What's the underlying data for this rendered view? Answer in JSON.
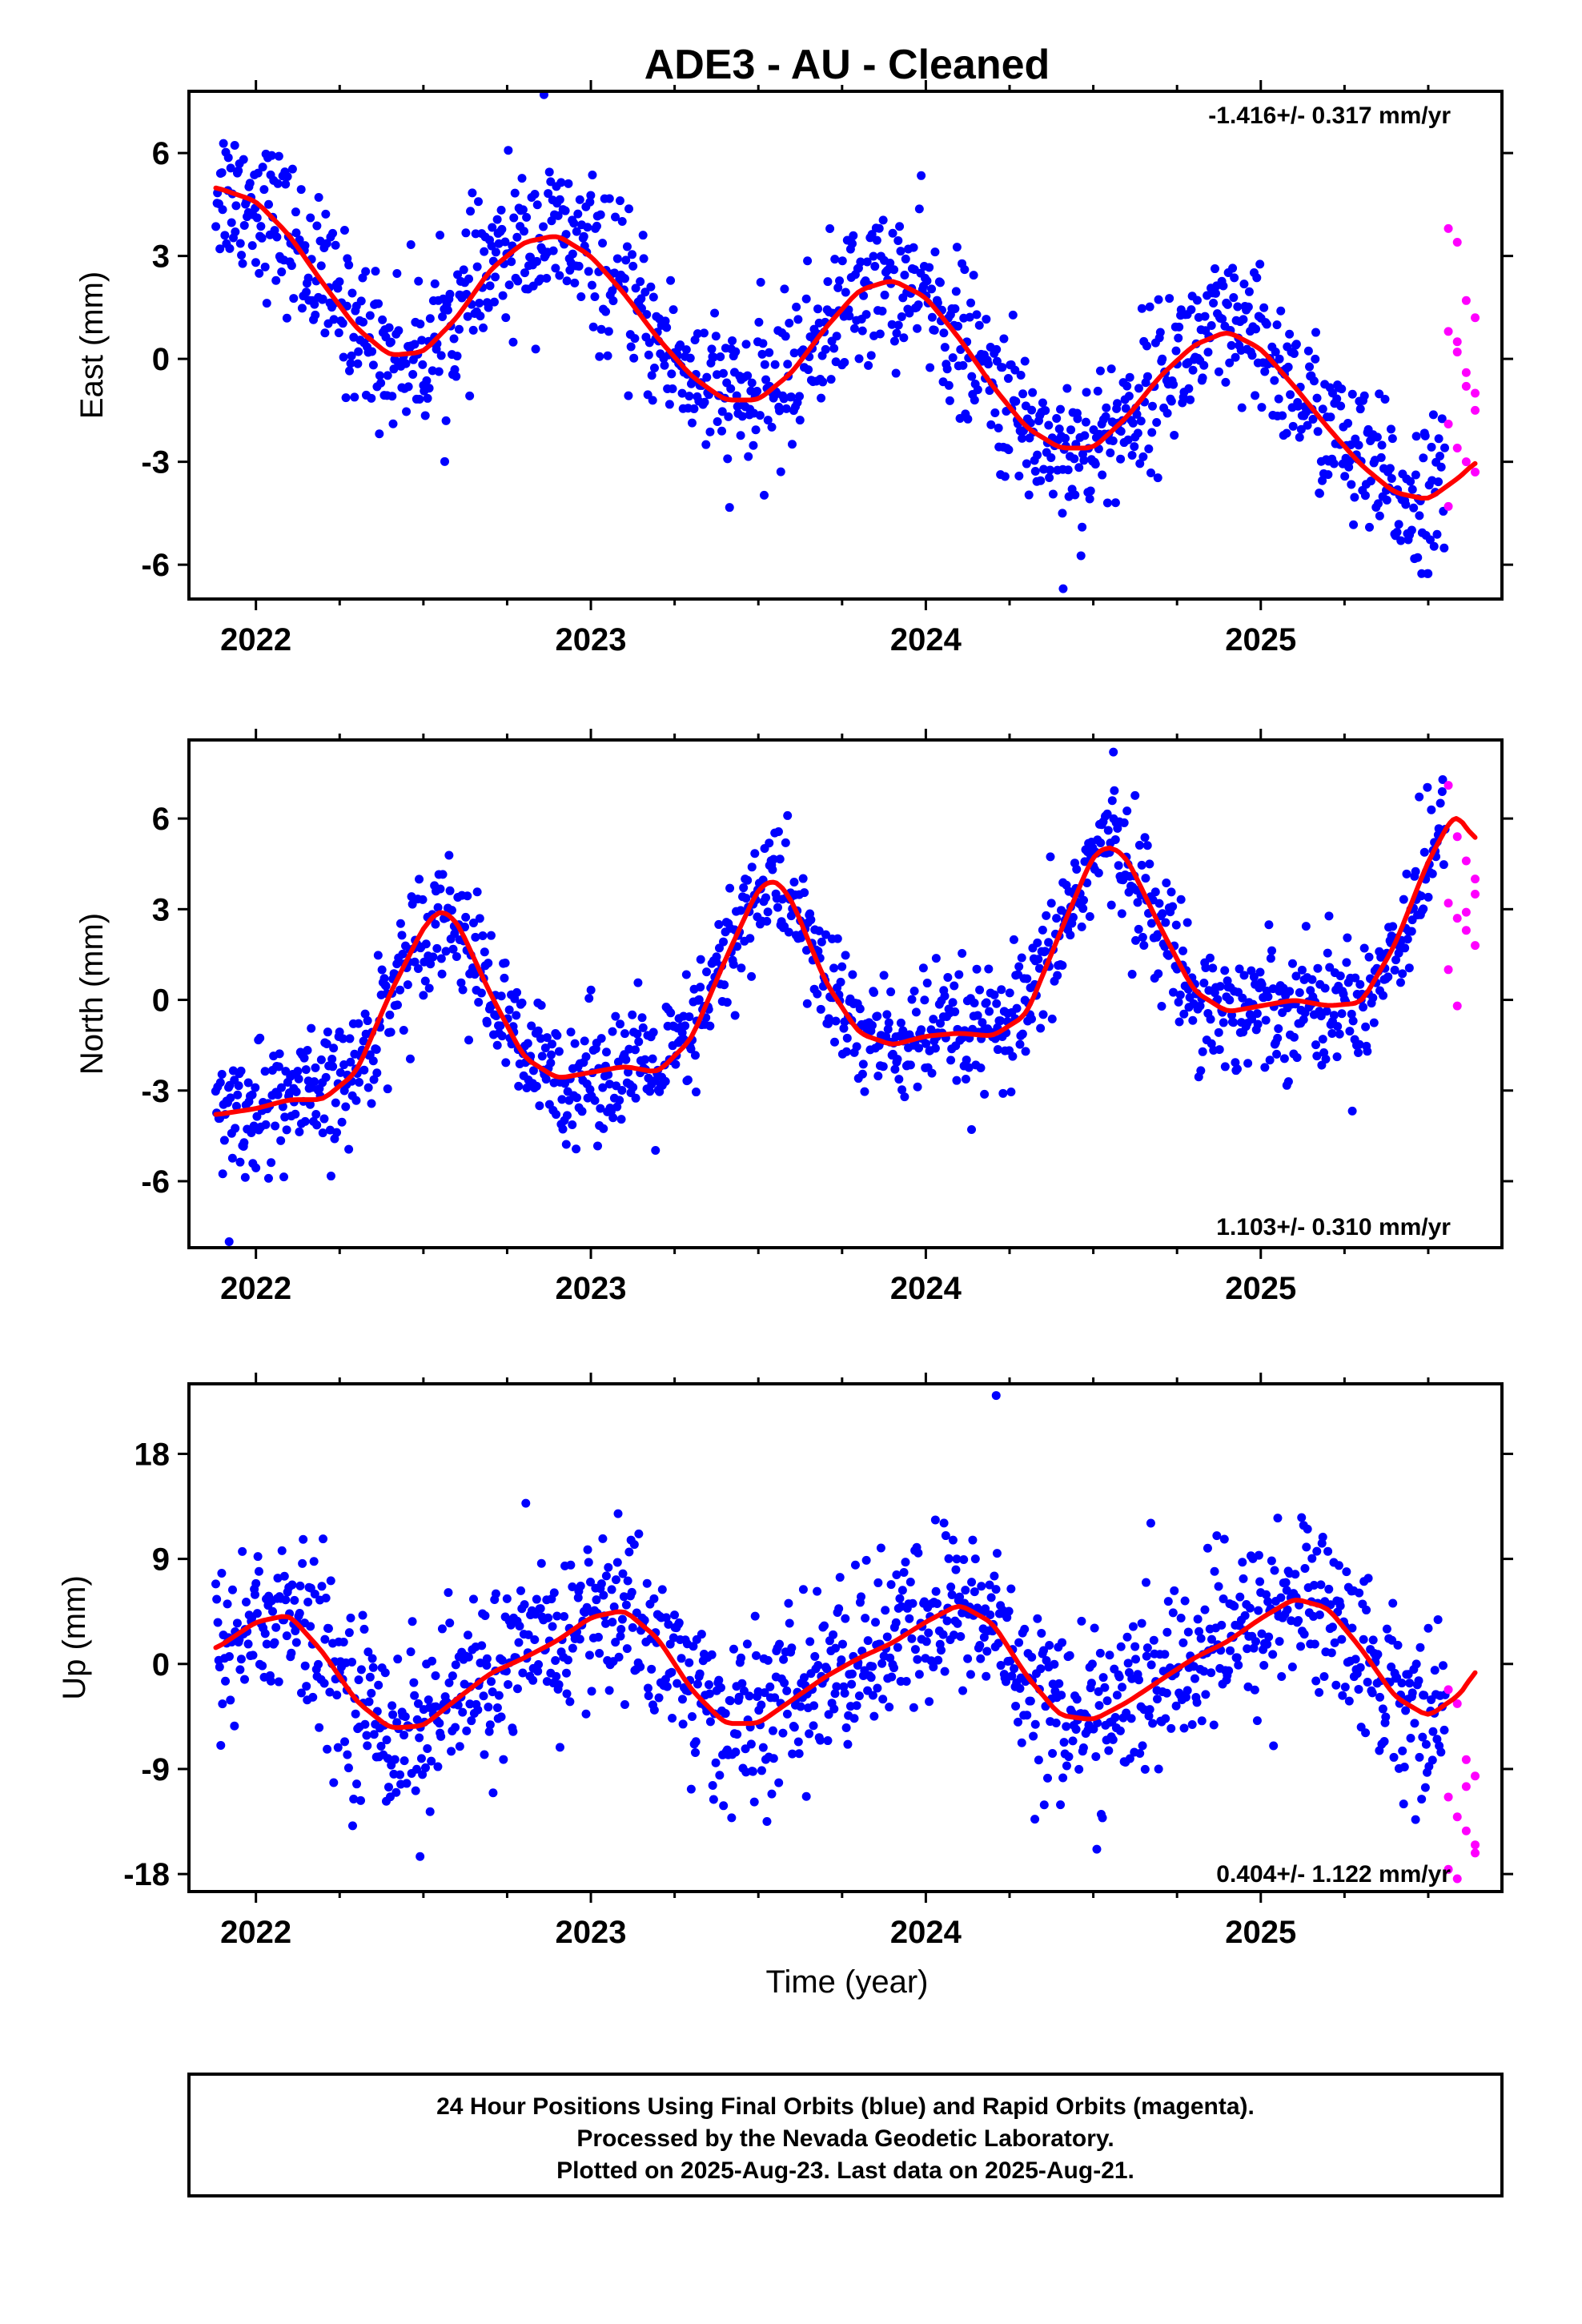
{
  "figure": {
    "title": "ADE3  - AU - Cleaned",
    "xlabel": "Time (year)",
    "footer": [
      "24 Hour Positions Using Final Orbits (blue) and Rapid Orbits (magenta).",
      "Processed by the Nevada Geodetic Laboratory.",
      "Plotted on 2025-Aug-23. Last data on 2025-Aug-21."
    ],
    "colors": {
      "final_orbits": "#0000ff",
      "rapid_orbits": "#ff00ff",
      "model": "#ff0000",
      "frame": "#000000"
    }
  },
  "chart_data": [
    {
      "type": "scatter",
      "component": "east",
      "ylabel": "East (mm)",
      "rate_label": "-1.416+/- 0.317 mm/yr",
      "xlim": [
        2021.8,
        2025.72
      ],
      "ylim": [
        -7,
        7.8
      ],
      "xticks": [
        2022,
        2023,
        2024,
        2025
      ],
      "yticks": [
        -6,
        -3,
        0,
        3,
        6
      ],
      "trend_per_year": -1.416,
      "fit_curve": {
        "name": "model",
        "x": [
          2021.88,
          2022.0,
          2022.1,
          2022.2,
          2022.3,
          2022.4,
          2022.5,
          2022.6,
          2022.7,
          2022.8,
          2022.9,
          2023.0,
          2023.1,
          2023.2,
          2023.3,
          2023.4,
          2023.5,
          2023.6,
          2023.7,
          2023.8,
          2023.9,
          2024.0,
          2024.1,
          2024.2,
          2024.3,
          2024.4,
          2024.5,
          2024.6,
          2024.7,
          2024.8,
          2024.9,
          2025.0,
          2025.1,
          2025.2,
          2025.3,
          2025.4,
          2025.5,
          2025.6,
          2025.64
        ],
        "y": [
          5.0,
          4.6,
          3.6,
          2.2,
          0.9,
          0.1,
          0.2,
          1.2,
          2.6,
          3.4,
          3.6,
          3.0,
          1.9,
          0.6,
          -0.5,
          -1.2,
          -1.2,
          -0.4,
          0.9,
          2.0,
          2.3,
          1.8,
          0.6,
          -0.8,
          -2.0,
          -2.6,
          -2.6,
          -1.7,
          -0.5,
          0.4,
          0.8,
          0.3,
          -0.8,
          -2.0,
          -3.1,
          -3.9,
          -4.1,
          -3.4,
          -3.0
        ]
      },
      "series": [
        {
          "name": "final orbits",
          "x_range": [
            2021.88,
            2025.55
          ],
          "count": 1250,
          "scatter_mm": 1.1,
          "extremes": [
            {
              "x": 2022.86,
              "y": 7.7
            },
            {
              "x": 2024.41,
              "y": -6.7
            }
          ]
        },
        {
          "name": "rapid orbits",
          "x_range": [
            2025.56,
            2025.64
          ],
          "count": 22,
          "values": [
            3.8,
            3.4,
            1.7,
            1.2,
            0.8,
            0.2,
            -0.4,
            -1.0,
            -1.9,
            -2.6,
            -3.0,
            -3.3,
            -4.3,
            0.5,
            -0.8,
            -1.5
          ]
        }
      ]
    },
    {
      "type": "scatter",
      "component": "north",
      "ylabel": "North (mm)",
      "rate_label": "1.103+/- 0.310 mm/yr",
      "xlim": [
        2021.8,
        2025.72
      ],
      "ylim": [
        -8.2,
        8.6
      ],
      "xticks": [
        2022,
        2023,
        2024,
        2025
      ],
      "yticks": [
        -6,
        -3,
        0,
        3,
        6
      ],
      "trend_per_year": 1.103,
      "fit_curve": {
        "name": "model",
        "x": [
          2021.88,
          2022.0,
          2022.1,
          2022.2,
          2022.3,
          2022.4,
          2022.5,
          2022.55,
          2022.6,
          2022.7,
          2022.8,
          2022.9,
          2023.0,
          2023.1,
          2023.2,
          2023.3,
          2023.4,
          2023.5,
          2023.55,
          2023.6,
          2023.7,
          2023.8,
          2023.9,
          2024.0,
          2024.1,
          2024.2,
          2024.3,
          2024.4,
          2024.5,
          2024.55,
          2024.6,
          2024.7,
          2024.8,
          2024.9,
          2025.0,
          2025.1,
          2025.2,
          2025.3,
          2025.4,
          2025.5,
          2025.58,
          2025.64
        ],
        "y": [
          -3.8,
          -3.6,
          -3.3,
          -3.3,
          -2.4,
          0.2,
          2.4,
          3.0,
          2.6,
          0.2,
          -1.9,
          -2.6,
          -2.4,
          -2.2,
          -2.4,
          -1.3,
          1.3,
          3.7,
          4.0,
          3.3,
          0.6,
          -1.1,
          -1.5,
          -1.2,
          -1.1,
          -1.2,
          -0.5,
          2.2,
          4.8,
          5.1,
          4.7,
          2.4,
          0.3,
          -0.4,
          -0.2,
          0.0,
          -0.2,
          -0.1,
          1.8,
          4.6,
          6.2,
          5.3
        ]
      },
      "series": [
        {
          "name": "final orbits",
          "x_range": [
            2021.88,
            2025.55
          ],
          "count": 1250,
          "scatter_mm": 1.05,
          "extremes": [
            {
              "x": 2021.92,
              "y": -8.0
            },
            {
              "x": 2024.56,
              "y": 8.2
            }
          ]
        },
        {
          "name": "rapid orbits",
          "x_range": [
            2025.56,
            2025.64
          ],
          "count": 22,
          "values": [
            7.1,
            5.4,
            4.6,
            3.5,
            3.2,
            2.7,
            2.3,
            1.8,
            1.0,
            -0.2,
            2.9,
            4.0
          ]
        }
      ]
    },
    {
      "type": "scatter",
      "component": "up",
      "ylabel": "Up (mm)",
      "rate_label": "0.404+/- 1.122 mm/yr",
      "xlim": [
        2021.8,
        2025.72
      ],
      "ylim": [
        -19.5,
        24
      ],
      "xticks": [
        2022,
        2023,
        2024,
        2025
      ],
      "yticks": [
        -18,
        -9,
        0,
        9,
        18
      ],
      "trend_per_year": 0.404,
      "fit_curve": {
        "name": "model",
        "x": [
          2021.88,
          2022.0,
          2022.1,
          2022.2,
          2022.3,
          2022.4,
          2022.5,
          2022.6,
          2022.7,
          2022.8,
          2022.9,
          2023.0,
          2023.1,
          2023.2,
          2023.3,
          2023.4,
          2023.5,
          2023.6,
          2023.7,
          2023.8,
          2023.9,
          2024.0,
          2024.1,
          2024.2,
          2024.3,
          2024.4,
          2024.5,
          2024.6,
          2024.7,
          2024.8,
          2024.9,
          2025.0,
          2025.1,
          2025.2,
          2025.3,
          2025.4,
          2025.5,
          2025.6,
          2025.64
        ],
        "y": [
          1.3,
          3.6,
          4.2,
          1.0,
          -3.2,
          -5.5,
          -5.3,
          -3.0,
          -0.8,
          0.5,
          2.0,
          4.0,
          4.6,
          2.2,
          -2.2,
          -5.1,
          -5.1,
          -3.1,
          -1.1,
          0.5,
          1.8,
          3.6,
          5.1,
          3.5,
          -1.0,
          -4.4,
          -4.8,
          -3.3,
          -1.4,
          0.5,
          1.9,
          3.9,
          5.6,
          4.8,
          1.3,
          -2.8,
          -4.5,
          -2.5,
          -0.5
        ]
      },
      "series": [
        {
          "name": "final orbits",
          "x_range": [
            2021.88,
            2025.55
          ],
          "count": 1250,
          "scatter_mm": 3.7,
          "extremes": [
            {
              "x": 2024.21,
              "y": 23.0
            },
            {
              "x": 2022.49,
              "y": -16.5
            }
          ]
        },
        {
          "name": "rapid orbits",
          "x_range": [
            2025.56,
            2025.64
          ],
          "count": 22,
          "values": [
            -2.2,
            -3.4,
            -8.2,
            -9.6,
            -11.4,
            -13.1,
            -14.3,
            -15.5,
            -17.6,
            -18.4,
            -10.5,
            -16.2
          ]
        }
      ]
    }
  ]
}
